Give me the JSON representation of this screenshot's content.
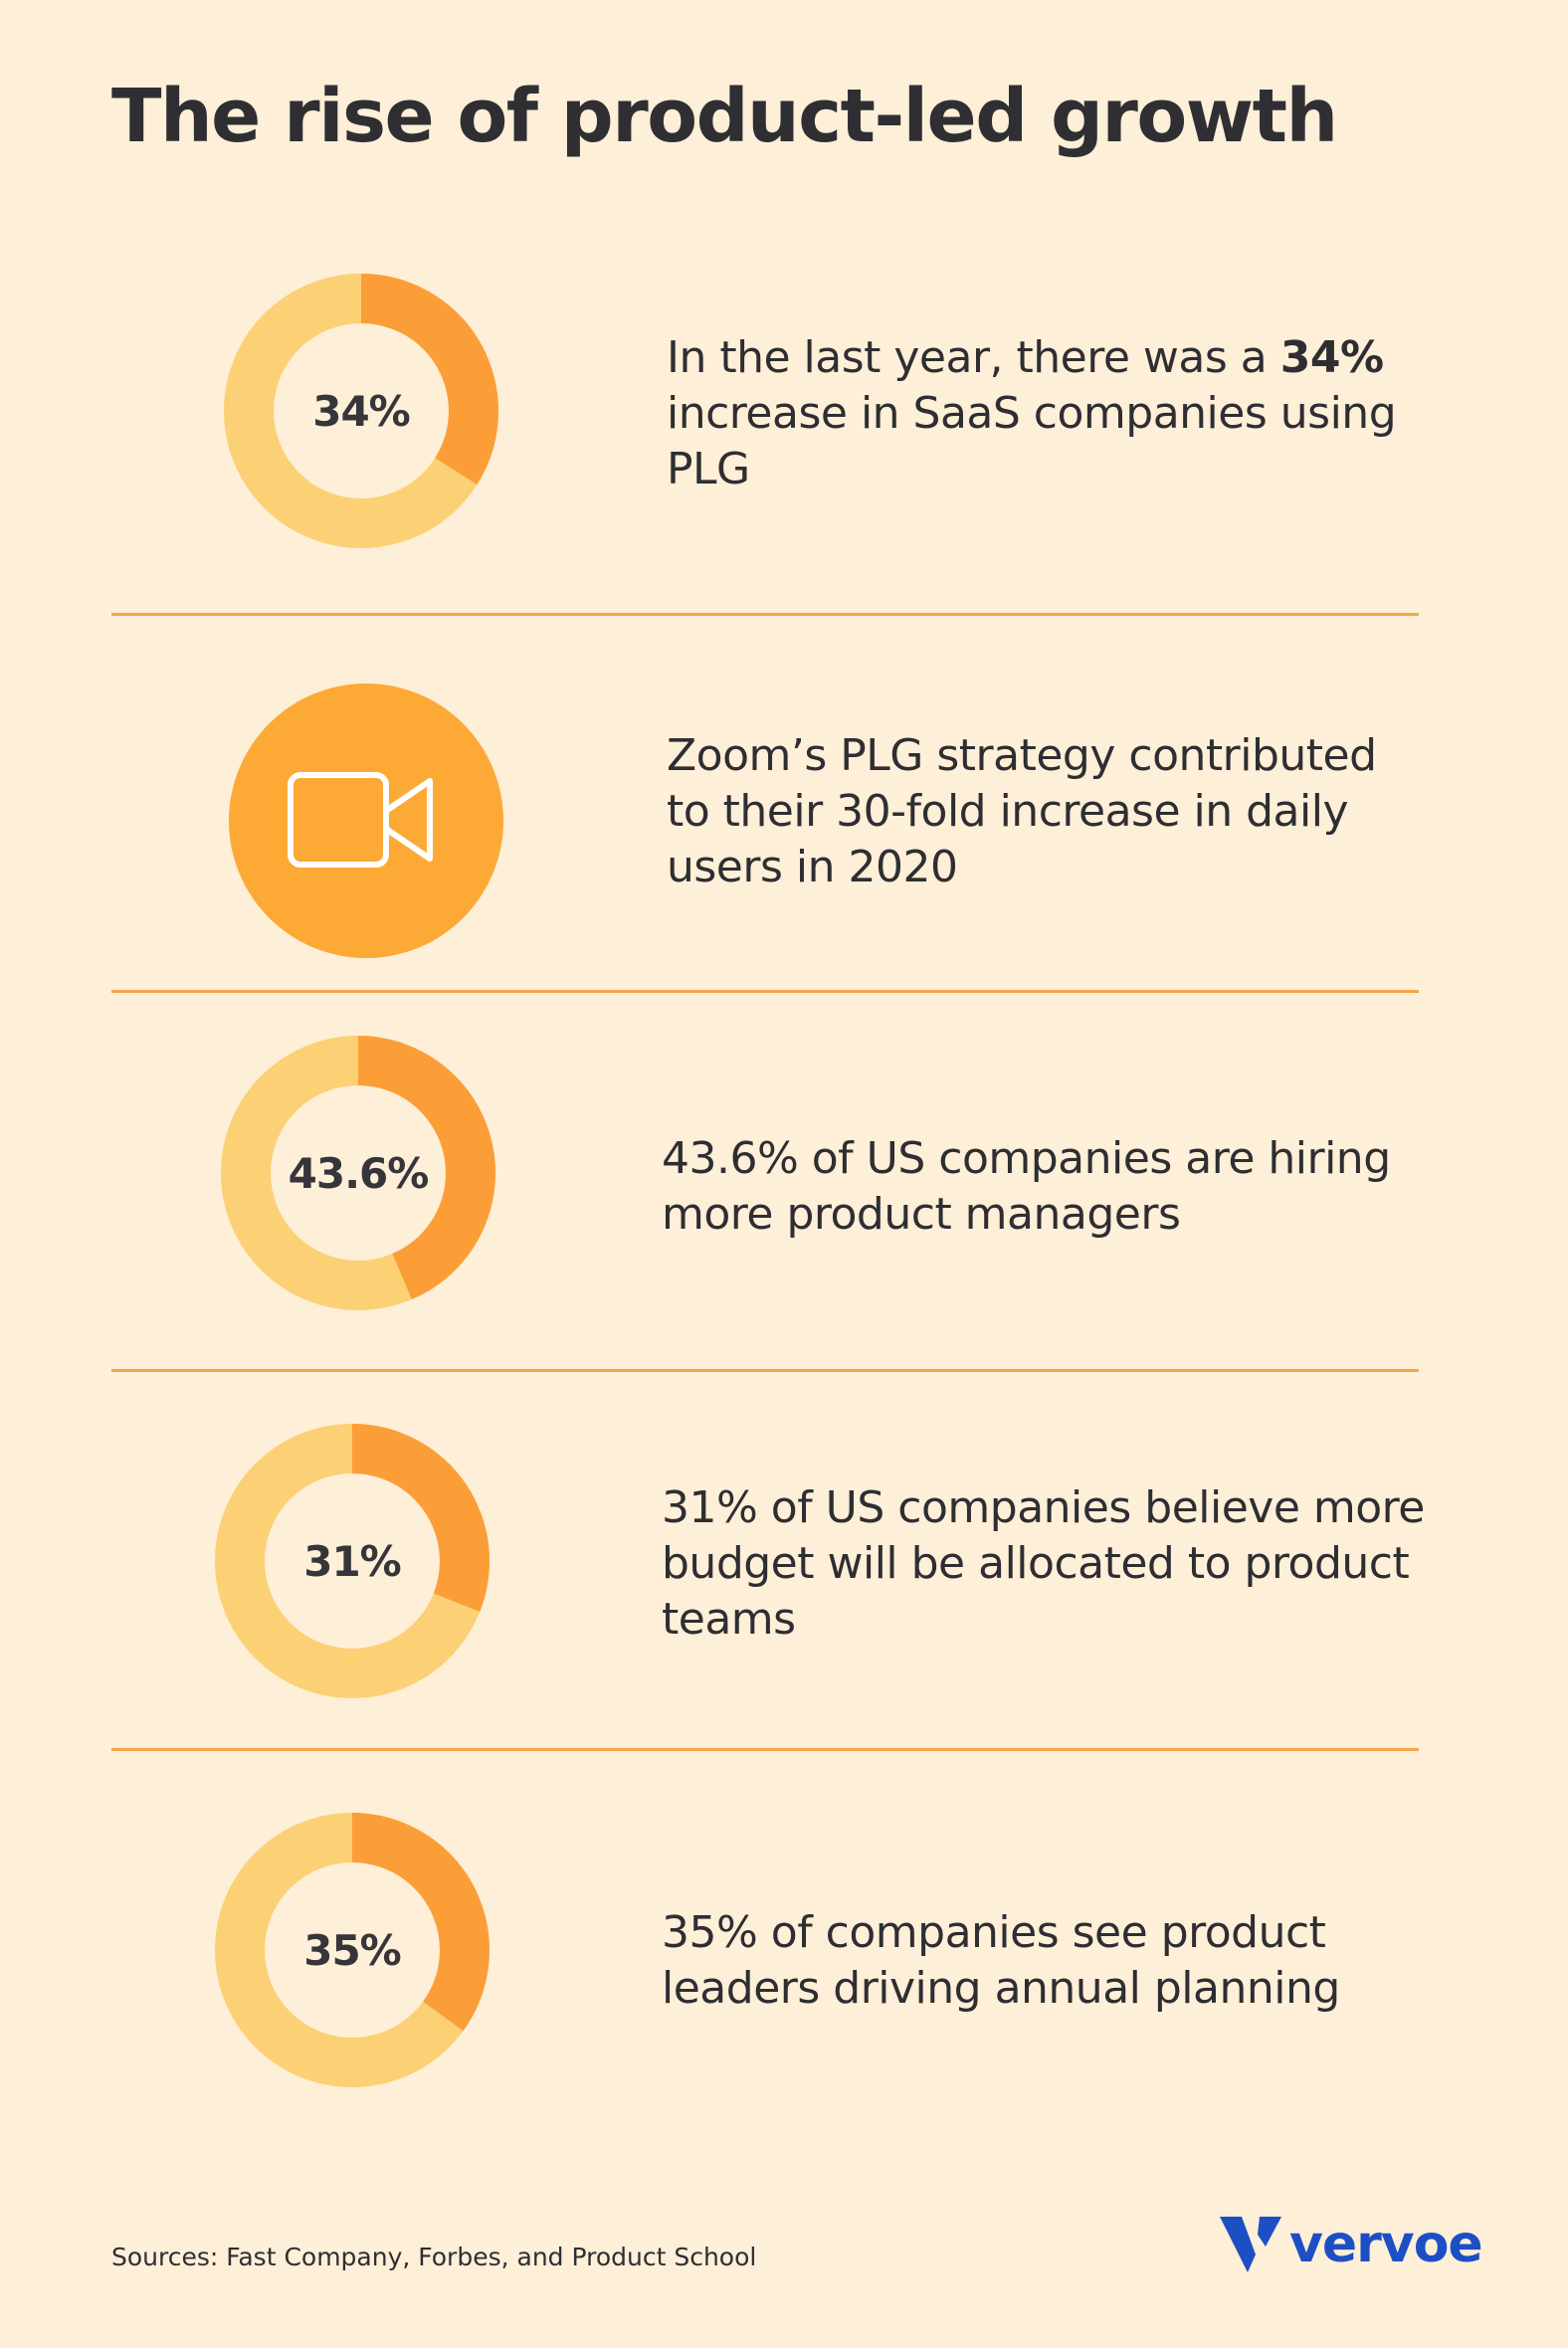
{
  "title": "The rise of product-led growth",
  "colors": {
    "background": "#fdefd8",
    "donut_track": "#fcd074",
    "donut_fill": "#fb9e38",
    "zoom_circle": "#fca935",
    "divider": "#f2a648",
    "brand": "#1d4fc4"
  },
  "stats": [
    {
      "kind": "donut",
      "value_label": "34%",
      "percent": 34,
      "text_before": "In the last year, there was a ",
      "text_bold": "34%",
      "text_after": " increase in SaaS companies using PLG"
    },
    {
      "kind": "icon",
      "icon": "video-camera-icon",
      "text_before": "Zoom’s PLG strategy contributed to their 30-fold increase in daily users in 2020",
      "text_bold": "",
      "text_after": ""
    },
    {
      "kind": "donut",
      "value_label": "43.6%",
      "percent": 43.6,
      "text_before": "43.6% of US companies are hiring more product managers",
      "text_bold": "",
      "text_after": ""
    },
    {
      "kind": "donut",
      "value_label": "31%",
      "percent": 31,
      "text_before": "31% of US companies believe more budget will be allocated to product teams",
      "text_bold": "",
      "text_after": ""
    },
    {
      "kind": "donut",
      "value_label": "35%",
      "percent": 35,
      "text_before": "35% of companies see product leaders driving annual planning",
      "text_bold": "",
      "text_after": ""
    }
  ],
  "sources": "Sources: Fast Company, Forbes, and Product School",
  "logo": {
    "text": "vervoe",
    "icon": "vervoe-v-logo-icon"
  }
}
